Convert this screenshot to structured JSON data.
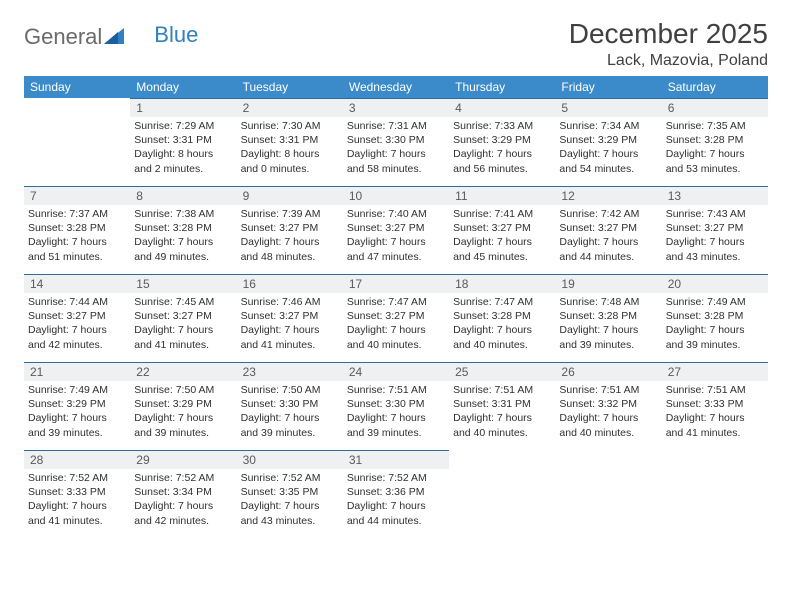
{
  "brand": {
    "part1": "General",
    "part2": "Blue"
  },
  "title": "December 2025",
  "location": "Lack, Mazovia, Poland",
  "colors": {
    "header_bg": "#3b8bca",
    "header_text": "#ffffff",
    "daynum_bg": "#eef0f1",
    "daynum_border": "#2c6ca3",
    "text": "#303030",
    "brand_gray": "#6b6b6b",
    "brand_blue": "#2f7fc2"
  },
  "weekdays": [
    "Sunday",
    "Monday",
    "Tuesday",
    "Wednesday",
    "Thursday",
    "Friday",
    "Saturday"
  ],
  "first_weekday_index": 1,
  "days": [
    {
      "n": 1,
      "sunrise": "7:29 AM",
      "sunset": "3:31 PM",
      "daylight": "8 hours and 2 minutes."
    },
    {
      "n": 2,
      "sunrise": "7:30 AM",
      "sunset": "3:31 PM",
      "daylight": "8 hours and 0 minutes."
    },
    {
      "n": 3,
      "sunrise": "7:31 AM",
      "sunset": "3:30 PM",
      "daylight": "7 hours and 58 minutes."
    },
    {
      "n": 4,
      "sunrise": "7:33 AM",
      "sunset": "3:29 PM",
      "daylight": "7 hours and 56 minutes."
    },
    {
      "n": 5,
      "sunrise": "7:34 AM",
      "sunset": "3:29 PM",
      "daylight": "7 hours and 54 minutes."
    },
    {
      "n": 6,
      "sunrise": "7:35 AM",
      "sunset": "3:28 PM",
      "daylight": "7 hours and 53 minutes."
    },
    {
      "n": 7,
      "sunrise": "7:37 AM",
      "sunset": "3:28 PM",
      "daylight": "7 hours and 51 minutes."
    },
    {
      "n": 8,
      "sunrise": "7:38 AM",
      "sunset": "3:28 PM",
      "daylight": "7 hours and 49 minutes."
    },
    {
      "n": 9,
      "sunrise": "7:39 AM",
      "sunset": "3:27 PM",
      "daylight": "7 hours and 48 minutes."
    },
    {
      "n": 10,
      "sunrise": "7:40 AM",
      "sunset": "3:27 PM",
      "daylight": "7 hours and 47 minutes."
    },
    {
      "n": 11,
      "sunrise": "7:41 AM",
      "sunset": "3:27 PM",
      "daylight": "7 hours and 45 minutes."
    },
    {
      "n": 12,
      "sunrise": "7:42 AM",
      "sunset": "3:27 PM",
      "daylight": "7 hours and 44 minutes."
    },
    {
      "n": 13,
      "sunrise": "7:43 AM",
      "sunset": "3:27 PM",
      "daylight": "7 hours and 43 minutes."
    },
    {
      "n": 14,
      "sunrise": "7:44 AM",
      "sunset": "3:27 PM",
      "daylight": "7 hours and 42 minutes."
    },
    {
      "n": 15,
      "sunrise": "7:45 AM",
      "sunset": "3:27 PM",
      "daylight": "7 hours and 41 minutes."
    },
    {
      "n": 16,
      "sunrise": "7:46 AM",
      "sunset": "3:27 PM",
      "daylight": "7 hours and 41 minutes."
    },
    {
      "n": 17,
      "sunrise": "7:47 AM",
      "sunset": "3:27 PM",
      "daylight": "7 hours and 40 minutes."
    },
    {
      "n": 18,
      "sunrise": "7:47 AM",
      "sunset": "3:28 PM",
      "daylight": "7 hours and 40 minutes."
    },
    {
      "n": 19,
      "sunrise": "7:48 AM",
      "sunset": "3:28 PM",
      "daylight": "7 hours and 39 minutes."
    },
    {
      "n": 20,
      "sunrise": "7:49 AM",
      "sunset": "3:28 PM",
      "daylight": "7 hours and 39 minutes."
    },
    {
      "n": 21,
      "sunrise": "7:49 AM",
      "sunset": "3:29 PM",
      "daylight": "7 hours and 39 minutes."
    },
    {
      "n": 22,
      "sunrise": "7:50 AM",
      "sunset": "3:29 PM",
      "daylight": "7 hours and 39 minutes."
    },
    {
      "n": 23,
      "sunrise": "7:50 AM",
      "sunset": "3:30 PM",
      "daylight": "7 hours and 39 minutes."
    },
    {
      "n": 24,
      "sunrise": "7:51 AM",
      "sunset": "3:30 PM",
      "daylight": "7 hours and 39 minutes."
    },
    {
      "n": 25,
      "sunrise": "7:51 AM",
      "sunset": "3:31 PM",
      "daylight": "7 hours and 40 minutes."
    },
    {
      "n": 26,
      "sunrise": "7:51 AM",
      "sunset": "3:32 PM",
      "daylight": "7 hours and 40 minutes."
    },
    {
      "n": 27,
      "sunrise": "7:51 AM",
      "sunset": "3:33 PM",
      "daylight": "7 hours and 41 minutes."
    },
    {
      "n": 28,
      "sunrise": "7:52 AM",
      "sunset": "3:33 PM",
      "daylight": "7 hours and 41 minutes."
    },
    {
      "n": 29,
      "sunrise": "7:52 AM",
      "sunset": "3:34 PM",
      "daylight": "7 hours and 42 minutes."
    },
    {
      "n": 30,
      "sunrise": "7:52 AM",
      "sunset": "3:35 PM",
      "daylight": "7 hours and 43 minutes."
    },
    {
      "n": 31,
      "sunrise": "7:52 AM",
      "sunset": "3:36 PM",
      "daylight": "7 hours and 44 minutes."
    }
  ],
  "labels": {
    "sunrise": "Sunrise:",
    "sunset": "Sunset:",
    "daylight": "Daylight:"
  }
}
